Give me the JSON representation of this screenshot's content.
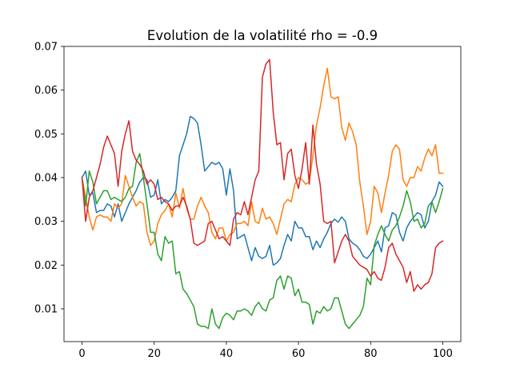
{
  "chart_data": {
    "type": "line",
    "title": "Evolution de la volatilité rho = -0.9",
    "xlabel": "",
    "ylabel": "",
    "xlim": [
      -5,
      105
    ],
    "ylim": [
      0.0025,
      0.07
    ],
    "xticks": [
      0,
      20,
      40,
      60,
      80,
      100
    ],
    "yticks": [
      0.01,
      0.02,
      0.03,
      0.04,
      0.05,
      0.06,
      0.07
    ],
    "xtick_labels": [
      "0",
      "20",
      "40",
      "60",
      "80",
      "100"
    ],
    "ytick_labels": [
      "0.01",
      "0.02",
      "0.03",
      "0.04",
      "0.05",
      "0.06",
      "0.07"
    ],
    "grid": false,
    "series": [
      {
        "color": "#1f77b4",
        "x": [
          0,
          1,
          2,
          3,
          4,
          5,
          6,
          7,
          8,
          9,
          10,
          11,
          12,
          13,
          14,
          15,
          16,
          17,
          18,
          19,
          20,
          21,
          22,
          23,
          24,
          25,
          26,
          27,
          28,
          29,
          30,
          31,
          32,
          33,
          34,
          35,
          36,
          37,
          38,
          39,
          40,
          41,
          42,
          43,
          44,
          45,
          46,
          47,
          48,
          49,
          50,
          51,
          52,
          53,
          54,
          55,
          56,
          57,
          58,
          59,
          60,
          61,
          62,
          63,
          64,
          65,
          66,
          67,
          68,
          69,
          70,
          71,
          72,
          73,
          74,
          75,
          76,
          77,
          78,
          79,
          80,
          81,
          82,
          83,
          84,
          85,
          86,
          87,
          88,
          89,
          90,
          91,
          92,
          93,
          94,
          95,
          96,
          97,
          98,
          99,
          100
        ],
        "values": [
          0.04,
          0.0415,
          0.036,
          0.0365,
          0.032,
          0.0325,
          0.0325,
          0.034,
          0.0335,
          0.031,
          0.034,
          0.03,
          0.032,
          0.034,
          0.0355,
          0.037,
          0.039,
          0.04,
          0.0395,
          0.0355,
          0.036,
          0.0395,
          0.034,
          0.035,
          0.0345,
          0.0355,
          0.037,
          0.045,
          0.0475,
          0.05,
          0.054,
          0.0535,
          0.0525,
          0.0475,
          0.0415,
          0.0425,
          0.0435,
          0.043,
          0.0435,
          0.042,
          0.036,
          0.042,
          0.037,
          0.026,
          0.0265,
          0.027,
          0.024,
          0.021,
          0.024,
          0.022,
          0.0215,
          0.022,
          0.0245,
          0.02,
          0.0205,
          0.0215,
          0.0245,
          0.027,
          0.0255,
          0.03,
          0.0285,
          0.0285,
          0.0265,
          0.0265,
          0.0235,
          0.0255,
          0.024,
          0.026,
          0.0275,
          0.0295,
          0.0305,
          0.0298,
          0.031,
          0.03,
          0.026,
          0.025,
          0.0245,
          0.0235,
          0.022,
          0.0215,
          0.0225,
          0.024,
          0.0255,
          0.023,
          0.0285,
          0.029,
          0.032,
          0.0315,
          0.0275,
          0.0255,
          0.0285,
          0.03,
          0.031,
          0.032,
          0.0315,
          0.0285,
          0.03,
          0.0345,
          0.036,
          0.039,
          0.038
        ]
      },
      {
        "color": "#ff7f0e",
        "x": [
          0,
          1,
          2,
          3,
          4,
          5,
          6,
          7,
          8,
          9,
          10,
          11,
          12,
          13,
          14,
          15,
          16,
          17,
          18,
          19,
          20,
          21,
          22,
          23,
          24,
          25,
          26,
          27,
          28,
          29,
          30,
          31,
          32,
          33,
          34,
          35,
          36,
          37,
          38,
          39,
          40,
          41,
          42,
          43,
          44,
          45,
          46,
          47,
          48,
          49,
          50,
          51,
          52,
          53,
          54,
          55,
          56,
          57,
          58,
          59,
          60,
          61,
          62,
          63,
          64,
          65,
          66,
          67,
          68,
          69,
          70,
          71,
          72,
          73,
          74,
          75,
          76,
          77,
          78,
          79,
          80,
          81,
          82,
          83,
          84,
          85,
          86,
          87,
          88,
          89,
          90,
          91,
          92,
          93,
          94,
          95,
          96,
          97,
          98,
          99,
          100
        ],
        "values": [
          0.04,
          0.0355,
          0.031,
          0.028,
          0.031,
          0.0315,
          0.031,
          0.031,
          0.03,
          0.034,
          0.033,
          0.034,
          0.0405,
          0.038,
          0.0355,
          0.0335,
          0.0345,
          0.034,
          0.0275,
          0.0245,
          0.0255,
          0.0295,
          0.0315,
          0.0325,
          0.034,
          0.031,
          0.0365,
          0.033,
          0.0375,
          0.033,
          0.0305,
          0.0305,
          0.0335,
          0.0355,
          0.0335,
          0.032,
          0.0275,
          0.026,
          0.0285,
          0.0285,
          0.0255,
          0.027,
          0.0275,
          0.0295,
          0.0295,
          0.03,
          0.029,
          0.0345,
          0.03,
          0.0295,
          0.033,
          0.0305,
          0.031,
          0.0295,
          0.027,
          0.0305,
          0.034,
          0.035,
          0.0345,
          0.0385,
          0.04,
          0.0395,
          0.0385,
          0.039,
          0.045,
          0.052,
          0.056,
          0.061,
          0.065,
          0.0585,
          0.058,
          0.0585,
          0.0515,
          0.0485,
          0.0525,
          0.0505,
          0.0475,
          0.039,
          0.0335,
          0.027,
          0.03,
          0.038,
          0.0365,
          0.032,
          0.0365,
          0.0405,
          0.046,
          0.0475,
          0.0465,
          0.0395,
          0.038,
          0.04,
          0.04,
          0.0425,
          0.0415,
          0.0445,
          0.0465,
          0.045,
          0.0475,
          0.041,
          0.041
        ]
      },
      {
        "color": "#2ca02c",
        "x": [
          0,
          1,
          2,
          3,
          4,
          5,
          6,
          7,
          8,
          9,
          10,
          11,
          12,
          13,
          14,
          15,
          16,
          17,
          18,
          19,
          20,
          21,
          22,
          23,
          24,
          25,
          26,
          27,
          28,
          29,
          30,
          31,
          32,
          33,
          34,
          35,
          36,
          37,
          38,
          39,
          40,
          41,
          42,
          43,
          44,
          45,
          46,
          47,
          48,
          49,
          50,
          51,
          52,
          53,
          54,
          55,
          56,
          57,
          58,
          59,
          60,
          61,
          62,
          63,
          64,
          65,
          66,
          67,
          68,
          69,
          70,
          71,
          72,
          73,
          74,
          75,
          76,
          77,
          78,
          79,
          80,
          81,
          82,
          83,
          84,
          85,
          86,
          87,
          88,
          89,
          90,
          91,
          92,
          93,
          94,
          95,
          96,
          97,
          98,
          99,
          100
        ],
        "values": [
          0.04,
          0.0335,
          0.0415,
          0.039,
          0.034,
          0.0355,
          0.037,
          0.037,
          0.035,
          0.0355,
          0.035,
          0.0345,
          0.0355,
          0.0375,
          0.038,
          0.0435,
          0.0455,
          0.04,
          0.034,
          0.0275,
          0.0275,
          0.0225,
          0.021,
          0.0265,
          0.025,
          0.0255,
          0.018,
          0.0185,
          0.0145,
          0.0135,
          0.012,
          0.0105,
          0.0065,
          0.006,
          0.006,
          0.0055,
          0.01,
          0.0065,
          0.0055,
          0.008,
          0.009,
          0.0085,
          0.0075,
          0.0095,
          0.0095,
          0.01,
          0.0095,
          0.0085,
          0.0105,
          0.0115,
          0.01,
          0.0095,
          0.012,
          0.0125,
          0.0165,
          0.0175,
          0.0145,
          0.0175,
          0.017,
          0.013,
          0.0145,
          0.0115,
          0.0115,
          0.011,
          0.0065,
          0.0095,
          0.009,
          0.0105,
          0.0095,
          0.01,
          0.0125,
          0.0125,
          0.0095,
          0.0065,
          0.0055,
          0.0065,
          0.0075,
          0.0085,
          0.0105,
          0.017,
          0.0155,
          0.0245,
          0.027,
          0.029,
          0.027,
          0.0255,
          0.028,
          0.029,
          0.031,
          0.0335,
          0.037,
          0.0345,
          0.03,
          0.0305,
          0.0285,
          0.0295,
          0.0335,
          0.0345,
          0.032,
          0.0345,
          0.0375
        ]
      },
      {
        "color": "#d62728",
        "x": [
          0,
          1,
          2,
          3,
          4,
          5,
          6,
          7,
          8,
          9,
          10,
          11,
          12,
          13,
          14,
          15,
          16,
          17,
          18,
          19,
          20,
          21,
          22,
          23,
          24,
          25,
          26,
          27,
          28,
          29,
          30,
          31,
          32,
          33,
          34,
          35,
          36,
          37,
          38,
          39,
          40,
          41,
          42,
          43,
          44,
          45,
          46,
          47,
          48,
          49,
          50,
          51,
          52,
          53,
          54,
          55,
          56,
          57,
          58,
          59,
          60,
          61,
          62,
          63,
          64,
          65,
          66,
          67,
          68,
          69,
          70,
          71,
          72,
          73,
          74,
          75,
          76,
          77,
          78,
          79,
          80,
          81,
          82,
          83,
          84,
          85,
          86,
          87,
          88,
          89,
          90,
          91,
          92,
          93,
          94,
          95,
          96,
          97,
          98,
          99,
          100
        ],
        "values": [
          0.04,
          0.03,
          0.0355,
          0.037,
          0.04,
          0.043,
          0.047,
          0.0495,
          0.0475,
          0.0455,
          0.038,
          0.046,
          0.05,
          0.053,
          0.046,
          0.044,
          0.043,
          0.0415,
          0.0385,
          0.0395,
          0.0385,
          0.035,
          0.0355,
          0.0345,
          0.034,
          0.0325,
          0.0335,
          0.0335,
          0.0355,
          0.0335,
          0.0305,
          0.025,
          0.0245,
          0.025,
          0.0255,
          0.0295,
          0.03,
          0.028,
          0.026,
          0.0265,
          0.0255,
          0.0245,
          0.0305,
          0.032,
          0.0315,
          0.0345,
          0.0315,
          0.0355,
          0.0395,
          0.0415,
          0.063,
          0.066,
          0.067,
          0.055,
          0.0475,
          0.048,
          0.0395,
          0.0455,
          0.0465,
          0.0405,
          0.0375,
          0.042,
          0.048,
          0.0385,
          0.052,
          0.043,
          0.0385,
          0.03,
          0.0295,
          0.03,
          0.0205,
          0.023,
          0.0255,
          0.027,
          0.0255,
          0.022,
          0.021,
          0.02,
          0.0195,
          0.019,
          0.0175,
          0.0185,
          0.017,
          0.0165,
          0.0195,
          0.024,
          0.025,
          0.0225,
          0.021,
          0.0195,
          0.016,
          0.0185,
          0.014,
          0.0155,
          0.0145,
          0.0155,
          0.016,
          0.018,
          0.024,
          0.025,
          0.0255
        ]
      }
    ]
  }
}
